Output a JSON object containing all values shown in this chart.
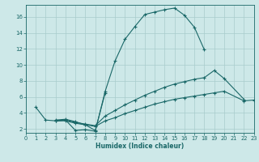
{
  "xlabel": "Humidex (Indice chaleur)",
  "xlim": [
    0,
    23
  ],
  "ylim": [
    1.5,
    17.5
  ],
  "xticks": [
    0,
    1,
    2,
    3,
    4,
    5,
    6,
    7,
    8,
    9,
    10,
    11,
    12,
    13,
    14,
    15,
    16,
    17,
    18,
    19,
    20,
    21,
    22,
    23
  ],
  "yticks": [
    2,
    4,
    6,
    8,
    10,
    12,
    14,
    16
  ],
  "bg_color": "#cde8e8",
  "grid_color": "#a8cccc",
  "line_color": "#1a6868",
  "lines": [
    {
      "x": [
        1,
        2,
        3,
        4,
        5,
        6,
        7,
        8,
        9,
        10,
        11,
        12,
        13,
        14,
        15,
        16,
        17,
        18
      ],
      "y": [
        4.7,
        3.1,
        3.0,
        3.1,
        1.8,
        1.9,
        1.7,
        6.7,
        10.5,
        13.2,
        14.8,
        16.3,
        16.6,
        16.9,
        17.1,
        16.2,
        14.7,
        11.9
      ]
    },
    {
      "x": [
        3,
        4,
        5,
        6,
        7,
        8
      ],
      "y": [
        3.1,
        3.2,
        2.9,
        2.5,
        1.8,
        6.5
      ]
    },
    {
      "x": [
        3,
        4,
        5,
        6,
        7,
        8,
        9,
        10,
        11,
        12,
        13,
        14,
        15,
        16,
        17,
        18,
        19,
        20,
        22
      ],
      "y": [
        3.0,
        3.1,
        2.8,
        2.6,
        2.4,
        3.6,
        4.3,
        5.0,
        5.6,
        6.2,
        6.7,
        7.2,
        7.6,
        7.9,
        8.2,
        8.4,
        9.3,
        8.3,
        5.7
      ]
    },
    {
      "x": [
        3,
        4,
        5,
        6,
        7,
        8,
        9,
        10,
        11,
        12,
        13,
        14,
        15,
        16,
        17,
        18,
        19,
        20,
        22,
        23
      ],
      "y": [
        3.0,
        3.0,
        2.7,
        2.5,
        2.3,
        3.0,
        3.4,
        3.9,
        4.3,
        4.7,
        5.1,
        5.4,
        5.7,
        5.9,
        6.1,
        6.3,
        6.5,
        6.7,
        5.5,
        5.6
      ]
    }
  ]
}
